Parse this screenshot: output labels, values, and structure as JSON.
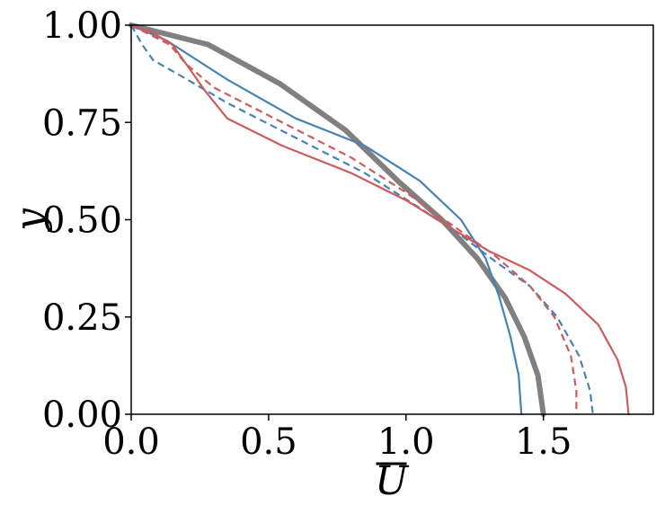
{
  "chart_data": {
    "type": "line",
    "title": "",
    "xlabel": "U",
    "ylabel": "y",
    "xlim": [
      0.0,
      1.9
    ],
    "ylim": [
      0.0,
      1.0
    ],
    "xticks": [
      "0.0",
      "0.5",
      "1.0",
      "1.5"
    ],
    "yticks": [
      "0.00",
      "0.25",
      "0.50",
      "0.75",
      "1.00"
    ],
    "grid": false,
    "legend": "none",
    "series": [
      {
        "color": "#808080",
        "style": "solid",
        "weight": "thick",
        "points": [
          [
            0.0,
            1.0
          ],
          [
            0.28,
            0.95
          ],
          [
            0.54,
            0.85
          ],
          [
            0.78,
            0.73
          ],
          [
            0.97,
            0.6
          ],
          [
            1.13,
            0.5
          ],
          [
            1.26,
            0.4
          ],
          [
            1.36,
            0.3
          ],
          [
            1.43,
            0.2
          ],
          [
            1.48,
            0.1
          ],
          [
            1.5,
            0.0
          ]
        ]
      },
      {
        "color": "#4682b4",
        "style": "solid",
        "weight": "thin",
        "points": [
          [
            0.0,
            1.0
          ],
          [
            0.13,
            0.96
          ],
          [
            0.35,
            0.86
          ],
          [
            0.6,
            0.76
          ],
          [
            0.85,
            0.69
          ],
          [
            1.05,
            0.6
          ],
          [
            1.2,
            0.5
          ],
          [
            1.29,
            0.4
          ],
          [
            1.34,
            0.3
          ],
          [
            1.38,
            0.2
          ],
          [
            1.41,
            0.1
          ],
          [
            1.42,
            0.0
          ]
        ]
      },
      {
        "color": "#4682b4",
        "style": "dashed",
        "weight": "thin",
        "points": [
          [
            0.0,
            1.0
          ],
          [
            0.04,
            0.95
          ],
          [
            0.08,
            0.91
          ],
          [
            0.18,
            0.87
          ],
          [
            0.35,
            0.8
          ],
          [
            0.6,
            0.71
          ],
          [
            0.85,
            0.62
          ],
          [
            1.05,
            0.53
          ],
          [
            1.2,
            0.46
          ],
          [
            1.33,
            0.39
          ],
          [
            1.45,
            0.33
          ],
          [
            1.55,
            0.25
          ],
          [
            1.63,
            0.15
          ],
          [
            1.67,
            0.06
          ],
          [
            1.68,
            0.0
          ]
        ]
      },
      {
        "color": "#cd5c5c",
        "style": "dashed",
        "weight": "thin",
        "points": [
          [
            0.0,
            1.0
          ],
          [
            0.14,
            0.95
          ],
          [
            0.2,
            0.9
          ],
          [
            0.3,
            0.84
          ],
          [
            0.55,
            0.75
          ],
          [
            0.8,
            0.66
          ],
          [
            1.0,
            0.57
          ],
          [
            1.18,
            0.48
          ],
          [
            1.32,
            0.41
          ],
          [
            1.45,
            0.33
          ],
          [
            1.54,
            0.25
          ],
          [
            1.6,
            0.15
          ],
          [
            1.62,
            0.06
          ],
          [
            1.62,
            0.0
          ]
        ]
      },
      {
        "color": "#cd5c5c",
        "style": "solid",
        "weight": "thin",
        "points": [
          [
            0.0,
            1.0
          ],
          [
            0.08,
            0.98
          ],
          [
            0.15,
            0.95
          ],
          [
            0.2,
            0.9
          ],
          [
            0.27,
            0.83
          ],
          [
            0.35,
            0.76
          ],
          [
            0.55,
            0.69
          ],
          [
            0.8,
            0.62
          ],
          [
            1.0,
            0.55
          ],
          [
            1.16,
            0.48
          ],
          [
            1.3,
            0.42
          ],
          [
            1.45,
            0.37
          ],
          [
            1.58,
            0.31
          ],
          [
            1.7,
            0.23
          ],
          [
            1.77,
            0.14
          ],
          [
            1.8,
            0.07
          ],
          [
            1.81,
            0.0
          ]
        ]
      }
    ]
  }
}
